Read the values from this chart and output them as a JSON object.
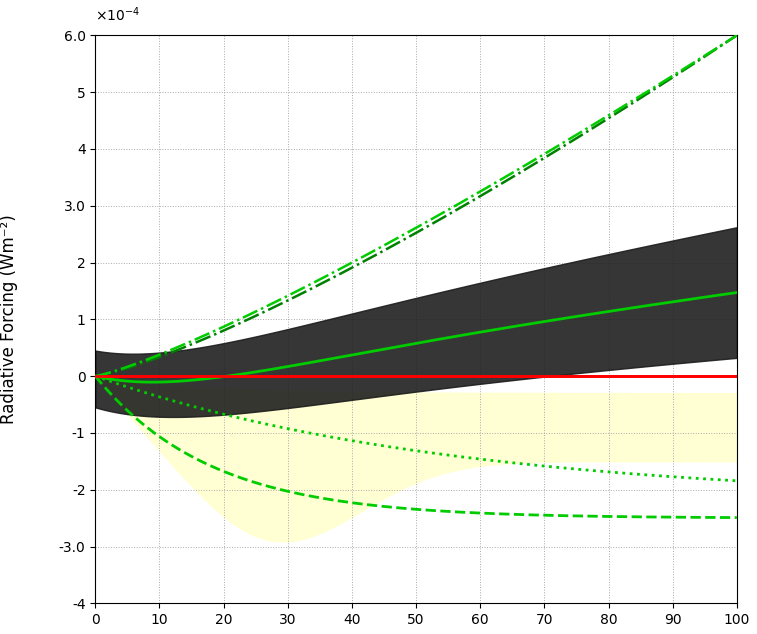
{
  "title": "",
  "xlabel": "",
  "ylabel": "Radiative Forcing (Wm⁻²)",
  "xlim": [
    0,
    100
  ],
  "ylim": [
    -0.0004,
    0.0006
  ],
  "yticks": [
    -0.0004,
    -0.0003,
    -0.0002,
    -0.0001,
    0,
    0.0001,
    0.0002,
    0.0003,
    0.0004,
    0.0005,
    0.0006
  ],
  "xticks": [
    0,
    10,
    20,
    30,
    40,
    50,
    60,
    70,
    80,
    90,
    100
  ],
  "background_color": "#ffffff",
  "grid_color": "#b0b0b0",
  "scale_factor": 0.0001
}
